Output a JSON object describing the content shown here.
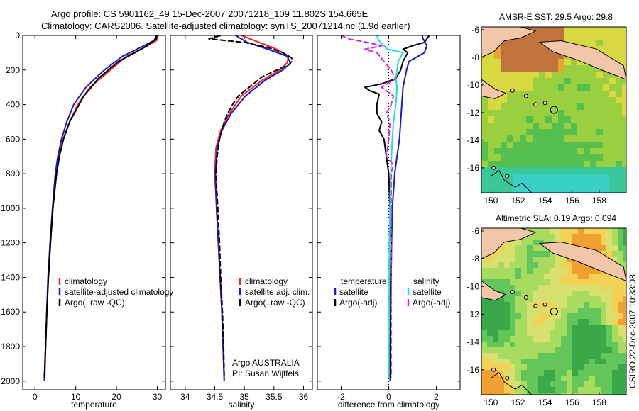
{
  "header": {
    "line1": "Argo profile: CS 5901162_49 15-Dec-2007 20071218_109 11.802S 154.665E",
    "line2": "Climatology: CARS2006. Satellite-adjusted climatology: synTS_20071214.nc (1.9d earlier)"
  },
  "credit": "CSIRO 22-Dec-2007 10:33:08",
  "colors": {
    "climatology": "#ff2020",
    "satellite": "#1a1acc",
    "argo": "#000000",
    "sat_sal": "#22dddd",
    "argo_sal": "#e020e0",
    "coast": "#f2c6a8"
  },
  "chart_data": [
    {
      "type": "line",
      "id": "temperature",
      "xlabel": "temperature",
      "xlim": [
        -3,
        32
      ],
      "xticks": [
        0,
        10,
        20,
        30
      ],
      "xtick_labels": [
        "0",
        "10",
        "20",
        "30"
      ],
      "ylim": [
        0,
        2050
      ],
      "yreversed": true,
      "yticks": [
        0,
        200,
        400,
        600,
        800,
        1000,
        1200,
        1400,
        1600,
        1800,
        2000
      ],
      "ytick_labels": [
        "0",
        "200",
        "400",
        "600",
        "800",
        "1000",
        "1200",
        "1400",
        "1600",
        "1800",
        "2000"
      ],
      "legend": [
        "climatology",
        "satellite-adjusted climatology",
        "Argo(..raw -QC)"
      ],
      "series": [
        {
          "name": "climatology",
          "color": "#ff2020",
          "depth": [
            0,
            30,
            80,
            120,
            200,
            300,
            400,
            500,
            600,
            700,
            800,
            1000,
            1200,
            1400,
            1600,
            1800,
            2000
          ],
          "values": [
            30.2,
            29.8,
            26,
            22.5,
            18.5,
            13.5,
            10.5,
            8.5,
            6.9,
            5.9,
            5.2,
            4.4,
            3.8,
            3.3,
            2.9,
            2.6,
            2.4
          ]
        },
        {
          "name": "satellite",
          "color": "#1a1acc",
          "depth": [
            0,
            30,
            80,
            120,
            200,
            300,
            400,
            500,
            600,
            700,
            800,
            1000,
            1200,
            1400,
            1600,
            1800,
            2000
          ],
          "values": [
            29.8,
            29.2,
            25,
            21.5,
            17,
            12.5,
            9.5,
            7.8,
            6.5,
            5.6,
            5,
            4.3,
            3.7,
            3.2,
            2.9,
            2.6,
            2.3
          ]
        },
        {
          "name": "argo",
          "color": "#000000",
          "depth": [
            0,
            20,
            60,
            100,
            150,
            200,
            250,
            300,
            350,
            400,
            500,
            600,
            700,
            800,
            1000,
            1200,
            1400,
            1600,
            1800,
            1980
          ],
          "values": [
            29.9,
            29.7,
            27.5,
            24.5,
            20.5,
            18,
            15.5,
            13.8,
            12,
            10.8,
            8.5,
            7,
            6,
            5.3,
            4.4,
            3.8,
            3.3,
            2.9,
            2.6,
            2.3
          ]
        }
      ]
    },
    {
      "type": "line",
      "id": "salinity",
      "xlabel": "salinity",
      "xlim": [
        33.75,
        36.15
      ],
      "xticks": [
        34,
        34.5,
        35,
        35.5,
        36
      ],
      "xtick_labels": [
        "34",
        "34.5",
        "35",
        "35.5",
        "36"
      ],
      "ylim": [
        0,
        2050
      ],
      "yreversed": true,
      "legend": [
        "climatology",
        "satellite adj. clim.",
        "Argo(..raw -QC)"
      ],
      "annotation": [
        "Argo AUSTRALIA",
        "PI: Susan Wijffels"
      ],
      "series": [
        {
          "name": "climatology",
          "color": "#ff2020",
          "depth": [
            0,
            40,
            80,
            120,
            160,
            200,
            260,
            350,
            450,
            550,
            650,
            800,
            1000,
            1200,
            1400,
            1600,
            1800,
            2000
          ],
          "values": [
            34.95,
            35.25,
            35.55,
            35.75,
            35.72,
            35.6,
            35.3,
            34.95,
            34.75,
            34.6,
            34.52,
            34.5,
            34.53,
            34.56,
            34.59,
            34.62,
            34.64,
            34.66
          ]
        },
        {
          "name": "satellite",
          "color": "#1a1acc",
          "depth": [
            0,
            40,
            80,
            120,
            160,
            200,
            260,
            350,
            450,
            550,
            650,
            800,
            1000,
            1200,
            1400,
            1600,
            1800,
            2000
          ],
          "values": [
            34.85,
            35.05,
            35.4,
            35.72,
            35.78,
            35.65,
            35.35,
            35.02,
            34.78,
            34.62,
            34.54,
            34.51,
            34.53,
            34.56,
            34.59,
            34.62,
            34.64,
            34.66
          ]
        },
        {
          "name": "argo",
          "color": "#000000",
          "depth": [
            0,
            20,
            40,
            70,
            100,
            130,
            150,
            170,
            200,
            240,
            300,
            350,
            400,
            450,
            500,
            600,
            700,
            800,
            1000,
            1200,
            1400,
            1600,
            1800,
            1980
          ],
          "values": [
            34.6,
            34.4,
            35.0,
            35.4,
            35.65,
            35.8,
            35.8,
            35.75,
            35.55,
            35.3,
            35.08,
            34.9,
            34.8,
            34.72,
            34.66,
            34.58,
            34.54,
            34.52,
            34.55,
            34.58,
            34.6,
            34.63,
            34.65,
            34.66
          ]
        }
      ]
    },
    {
      "type": "line",
      "id": "difference",
      "xlabel": "difference from climatology",
      "xlim": [
        -3,
        3
      ],
      "xticks": [
        -2,
        0,
        2
      ],
      "xtick_labels": [
        "-2",
        "0",
        "2"
      ],
      "ylim": [
        0,
        2050
      ],
      "yreversed": true,
      "legend_left": [
        "temperature",
        "satellite",
        "Argo(-adj)"
      ],
      "legend_right": [
        "salinity",
        "satellite",
        "Argo(-adj)"
      ],
      "series": [
        {
          "name": "temperature satellite",
          "color": "#1a1acc",
          "depth": [
            0,
            20,
            60,
            100,
            150,
            200,
            300,
            400,
            500,
            600,
            700,
            800,
            900,
            1000,
            1200,
            1400,
            1600,
            1800,
            2000
          ],
          "values": [
            1.4,
            1.45,
            1.6,
            1.5,
            0.85,
            0.75,
            0.6,
            0.55,
            0.5,
            0.45,
            0.35,
            0.25,
            0.2,
            0.15,
            0.12,
            0.1,
            0.08,
            0.07,
            0.06
          ]
        },
        {
          "name": "temperature Argo(-adj)",
          "color": "#000000",
          "depth": [
            0,
            20,
            40,
            60,
            80,
            100,
            150,
            200,
            250,
            280,
            300,
            320,
            340,
            400,
            450,
            500,
            550,
            600,
            700,
            800,
            1000,
            1200,
            1400,
            1600,
            1800,
            1980
          ],
          "values": [
            1.7,
            1.6,
            1.5,
            1.0,
            0.6,
            0.8,
            0.6,
            0.5,
            0.3,
            -0.3,
            -1.0,
            -0.8,
            -0.4,
            -0.5,
            -0.5,
            -0.3,
            -0.4,
            -0.2,
            -0.1,
            0.0,
            0.05,
            0.1,
            0.08,
            0.05,
            0.05,
            0.05
          ]
        },
        {
          "name": "salinity satellite",
          "color": "#22dddd",
          "depth": [
            0,
            20,
            40,
            60,
            80,
            100,
            150,
            200,
            250,
            300,
            400,
            500,
            600,
            800,
            1000,
            1200,
            1400,
            1600,
            1800,
            1980
          ],
          "values": [
            -0.5,
            -0.45,
            -0.35,
            -0.2,
            -0.05,
            0.6,
            0.4,
            0.35,
            0.3,
            0.35,
            0.3,
            0.2,
            0.15,
            0.08,
            0.05,
            0.03,
            0.02,
            0.02,
            0.01,
            0.01
          ]
        },
        {
          "name": "salinity Argo(-adj)",
          "color": "#e020e0",
          "depth": [
            0,
            20,
            40,
            60,
            80,
            100,
            150,
            200,
            250,
            300,
            350,
            400,
            450,
            500,
            600,
            700,
            750,
            800,
            1000,
            1200,
            1400,
            1600,
            1800,
            1980
          ],
          "values": [
            -2.0,
            -1.7,
            -0.9,
            -0.3,
            -1.0,
            -0.5,
            -0.2,
            0.1,
            0.3,
            -0.3,
            0.2,
            0.1,
            -0.1,
            0.05,
            0.0,
            -0.1,
            0.2,
            0.1,
            0.1,
            0.1,
            0.1,
            0.1,
            0.1,
            0.1
          ]
        }
      ]
    },
    {
      "type": "heatmap",
      "id": "sst_map",
      "title": "AMSR-E SST: 29.5 Argo: 29.8",
      "xlim": [
        149.3,
        160.0
      ],
      "ylim": [
        -17.8,
        -5.8
      ],
      "xticks": [
        150,
        152,
        154,
        156,
        158
      ],
      "xtick_labels": [
        "150",
        "152",
        "154",
        "156",
        "158"
      ],
      "yticks": [
        -6,
        -8,
        -10,
        -12,
        -14,
        -16
      ],
      "ytick_labels": [
        "-6",
        "-8",
        "-10",
        "-12",
        "-14",
        "-16"
      ],
      "marker": {
        "lon": 154.665,
        "lat": -11.802
      }
    },
    {
      "type": "heatmap",
      "id": "sla_map",
      "title": "Altimetric SLA: 0.19 Argo: 0.094",
      "xlim": [
        149.3,
        160.0
      ],
      "ylim": [
        -17.8,
        -5.8
      ],
      "xticks": [
        150,
        152,
        154,
        156,
        158
      ],
      "xtick_labels": [
        "150",
        "152",
        "154",
        "156",
        "158"
      ],
      "yticks": [
        -6,
        -8,
        -10,
        -12,
        -14,
        -16
      ],
      "ytick_labels": [
        "-6",
        "-8",
        "-10",
        "-12",
        "-14",
        "-16"
      ],
      "marker": {
        "lon": 154.665,
        "lat": -11.802
      }
    }
  ]
}
